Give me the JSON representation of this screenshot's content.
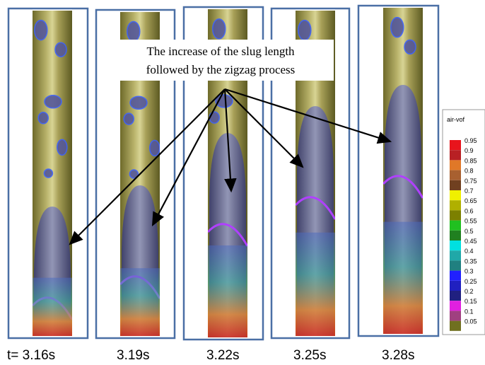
{
  "annotation": {
    "lines": [
      "The increase of the slug length",
      "followed by the zigzag process"
    ]
  },
  "panels": [
    {
      "time": "t= 3.16s"
    },
    {
      "time": "3.19s"
    },
    {
      "time": "3.22s"
    },
    {
      "time": "3.25s"
    },
    {
      "time": "3.28s"
    }
  ],
  "legend": {
    "title": "air-vof",
    "items": [
      {
        "label": "0.95",
        "color": "#e8141c"
      },
      {
        "label": "0.9",
        "color": "#b82024"
      },
      {
        "label": "0.85",
        "color": "#e07828"
      },
      {
        "label": "0.8",
        "color": "#a86030"
      },
      {
        "label": "0.75",
        "color": "#704020"
      },
      {
        "label": "0.7",
        "color": "#f0f000"
      },
      {
        "label": "0.65",
        "color": "#b0b000"
      },
      {
        "label": "0.6",
        "color": "#7c8000"
      },
      {
        "label": "0.55",
        "color": "#20c020"
      },
      {
        "label": "0.5",
        "color": "#208020"
      },
      {
        "label": "0.45",
        "color": "#00e0e0"
      },
      {
        "label": "0.4",
        "color": "#20a8a8"
      },
      {
        "label": "0.35",
        "color": "#208080"
      },
      {
        "label": "0.3",
        "color": "#2020ff"
      },
      {
        "label": "0.25",
        "color": "#2020c0"
      },
      {
        "label": "0.2",
        "color": "#202080"
      },
      {
        "label": "0.15",
        "color": "#e020e0"
      },
      {
        "label": "0.1",
        "color": "#a04080"
      },
      {
        "label": "0.05",
        "color": "#707020"
      }
    ]
  }
}
